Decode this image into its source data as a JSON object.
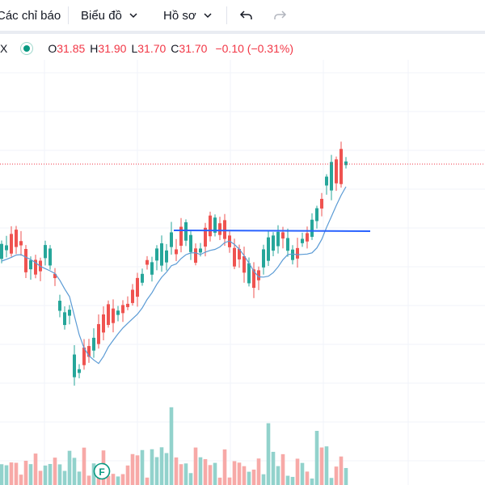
{
  "toolbar": {
    "indicators_label": "Các chỉ báo",
    "chart_type_label": "Biểu đồ",
    "profile_label": "Hồ sơ"
  },
  "legend": {
    "symbol": "X",
    "open_label": "O",
    "open": "31.85",
    "high_label": "H",
    "high": "31.90",
    "low_label": "L",
    "low": "31.70",
    "close_label": "C",
    "close": "31.70",
    "change": "−0.10 (−0.31%)"
  },
  "marker": {
    "label": "F"
  },
  "colors": {
    "up": "#26a69a",
    "down": "#ef5350",
    "vol_up": "#92d2cc",
    "vol_down": "#f7a9a7",
    "ma": "#5b9bd5",
    "level": "#2962ff",
    "price_line": "#f23645",
    "grid": "#f0f3fa"
  },
  "icons": [
    "chevron-down-icon",
    "undo-icon",
    "redo-icon",
    "live-dot-icon"
  ]
}
